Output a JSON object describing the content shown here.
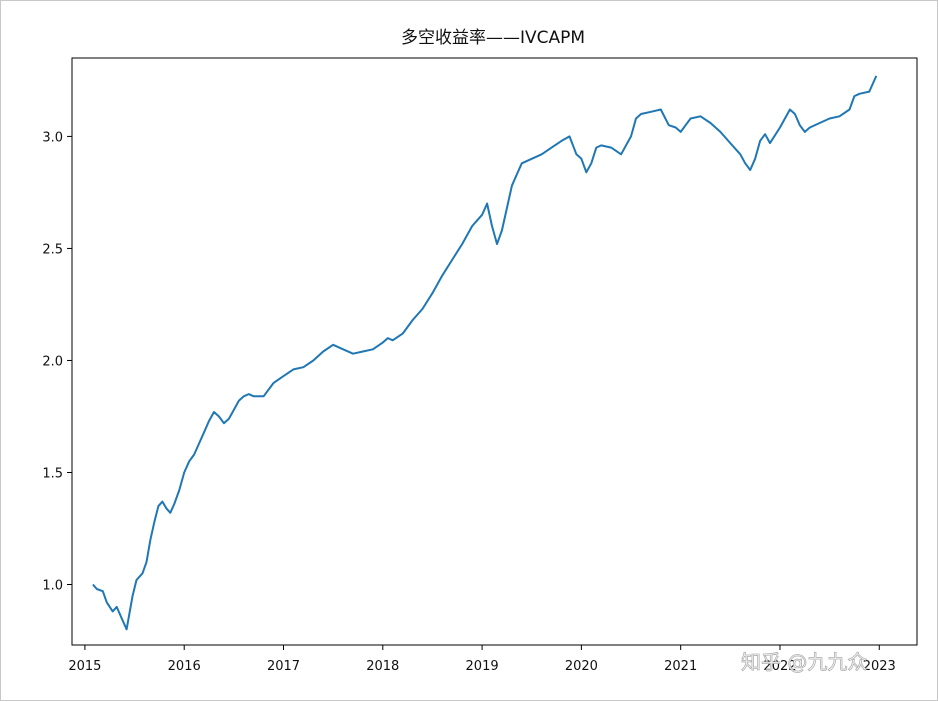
{
  "watermark": "知乎 @九九众",
  "chart_data": {
    "type": "line",
    "title": "多空收益率——IVCAPM",
    "xlabel": "",
    "ylabel": "",
    "xlim": [
      2014.87,
      2023.38
    ],
    "ylim": [
      0.73,
      3.35
    ],
    "xticks": [
      {
        "value": 2015,
        "label": "2015"
      },
      {
        "value": 2016,
        "label": "2016"
      },
      {
        "value": 2017,
        "label": "2017"
      },
      {
        "value": 2018,
        "label": "2018"
      },
      {
        "value": 2019,
        "label": "2019"
      },
      {
        "value": 2020,
        "label": "2020"
      },
      {
        "value": 2021,
        "label": "2021"
      },
      {
        "value": 2022,
        "label": "2022"
      },
      {
        "value": 2023,
        "label": "2023"
      }
    ],
    "yticks": [
      {
        "value": 1.0,
        "label": "1.0"
      },
      {
        "value": 1.5,
        "label": "1.5"
      },
      {
        "value": 2.0,
        "label": "2.0"
      },
      {
        "value": 2.5,
        "label": "2.5"
      },
      {
        "value": 3.0,
        "label": "3.0"
      }
    ],
    "grid": false,
    "series": [
      {
        "color": "#1f77b4",
        "x": [
          2015.08,
          2015.12,
          2015.18,
          2015.22,
          2015.28,
          2015.32,
          2015.38,
          2015.42,
          2015.48,
          2015.52,
          2015.58,
          2015.62,
          2015.66,
          2015.7,
          2015.74,
          2015.78,
          2015.82,
          2015.86,
          2015.9,
          2015.95,
          2016.0,
          2016.05,
          2016.1,
          2016.15,
          2016.2,
          2016.25,
          2016.3,
          2016.35,
          2016.4,
          2016.45,
          2016.5,
          2016.55,
          2016.6,
          2016.65,
          2016.7,
          2016.8,
          2016.9,
          2017.0,
          2017.1,
          2017.2,
          2017.3,
          2017.4,
          2017.5,
          2017.6,
          2017.7,
          2017.8,
          2017.9,
          2018.0,
          2018.05,
          2018.1,
          2018.2,
          2018.3,
          2018.4,
          2018.5,
          2018.6,
          2018.7,
          2018.8,
          2018.9,
          2019.0,
          2019.05,
          2019.1,
          2019.15,
          2019.2,
          2019.25,
          2019.3,
          2019.35,
          2019.4,
          2019.5,
          2019.6,
          2019.7,
          2019.8,
          2019.88,
          2019.95,
          2020.0,
          2020.05,
          2020.1,
          2020.15,
          2020.2,
          2020.3,
          2020.4,
          2020.5,
          2020.55,
          2020.6,
          2020.7,
          2020.8,
          2020.88,
          2020.95,
          2021.0,
          2021.05,
          2021.1,
          2021.2,
          2021.3,
          2021.4,
          2021.5,
          2021.6,
          2021.65,
          2021.7,
          2021.75,
          2021.8,
          2021.85,
          2021.9,
          2022.0,
          2022.1,
          2022.15,
          2022.2,
          2022.25,
          2022.3,
          2022.4,
          2022.5,
          2022.6,
          2022.7,
          2022.75,
          2022.8,
          2022.9,
          2022.97
        ],
        "values": [
          1.0,
          0.98,
          0.97,
          0.92,
          0.88,
          0.9,
          0.84,
          0.8,
          0.95,
          1.02,
          1.05,
          1.1,
          1.2,
          1.28,
          1.35,
          1.37,
          1.34,
          1.32,
          1.36,
          1.42,
          1.5,
          1.55,
          1.58,
          1.63,
          1.68,
          1.73,
          1.77,
          1.75,
          1.72,
          1.74,
          1.78,
          1.82,
          1.84,
          1.85,
          1.84,
          1.84,
          1.9,
          1.93,
          1.96,
          1.97,
          2.0,
          2.04,
          2.07,
          2.05,
          2.03,
          2.04,
          2.05,
          2.08,
          2.1,
          2.09,
          2.12,
          2.18,
          2.23,
          2.3,
          2.38,
          2.45,
          2.52,
          2.6,
          2.65,
          2.7,
          2.6,
          2.52,
          2.58,
          2.68,
          2.78,
          2.83,
          2.88,
          2.9,
          2.92,
          2.95,
          2.98,
          3.0,
          2.92,
          2.9,
          2.84,
          2.88,
          2.95,
          2.96,
          2.95,
          2.92,
          3.0,
          3.08,
          3.1,
          3.11,
          3.12,
          3.05,
          3.04,
          3.02,
          3.05,
          3.08,
          3.09,
          3.06,
          3.02,
          2.97,
          2.92,
          2.88,
          2.85,
          2.9,
          2.98,
          3.01,
          2.97,
          3.04,
          3.12,
          3.1,
          3.05,
          3.02,
          3.04,
          3.06,
          3.08,
          3.09,
          3.12,
          3.18,
          3.19,
          3.2,
          3.27
        ]
      }
    ]
  }
}
